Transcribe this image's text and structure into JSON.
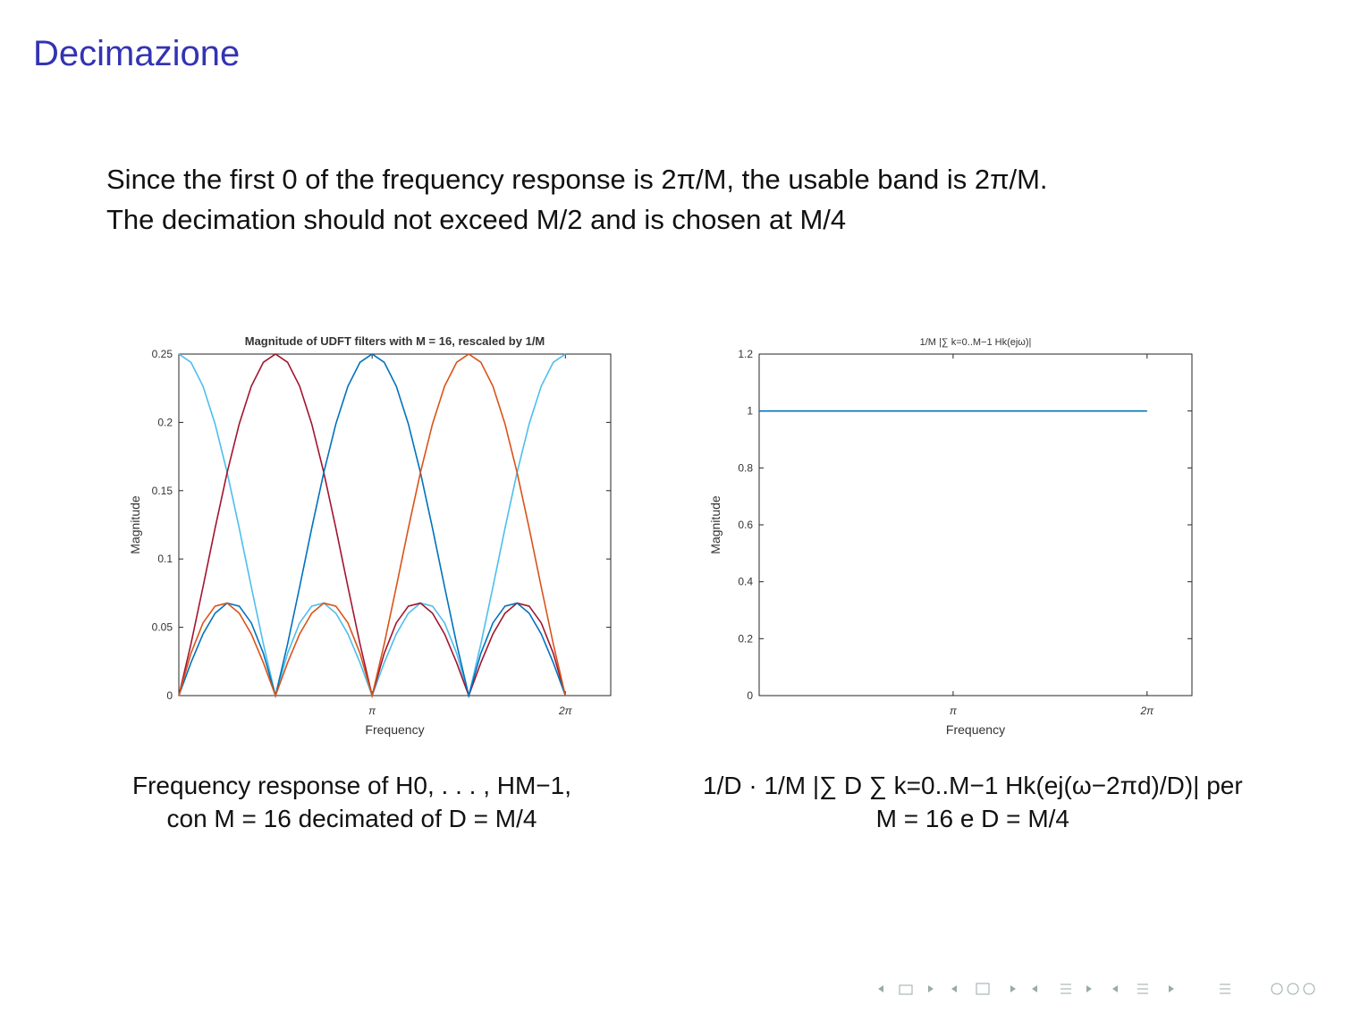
{
  "header": {
    "title": "Decimazione"
  },
  "body": {
    "lines": [
      "Since the first 0 of the frequency response is 2π/M, the usable band is 2π/M.",
      "The decimation should not exceed M/2 and is chosen at M/4"
    ]
  },
  "captions": [
    {
      "lines": [
        "Frequency response of H0, . . . , HM−1,",
        "con M = 16 decimated of D = M/4"
      ]
    },
    {
      "lines": [
        "1/D · 1/M |∑ D ∑ k=0..M−1 Hk(ej(ω−2πd)/D)| per",
        "M = 16 e D = M/4"
      ]
    }
  ],
  "chart_data": [
    {
      "type": "line",
      "title": "Magnitude of UDFT filters with M = 16, rescaled by 1/M",
      "x_label": "Frequency",
      "y_label": "Magnitude",
      "x": [
        0,
        0.19635,
        0.3927,
        0.58905,
        0.7854,
        0.98175,
        1.1781,
        1.37445,
        1.5708,
        1.76715,
        1.9635,
        2.15985,
        2.3562,
        2.55254,
        2.74889,
        2.94524,
        3.14159,
        3.33794,
        3.53429,
        3.73064,
        3.92699,
        4.12334,
        4.31969,
        4.51604,
        4.71239,
        4.90874,
        5.10509,
        5.30144,
        5.49779,
        5.69414,
        5.89049,
        6.08684,
        6.28319
      ],
      "series": [
        {
          "color": "#4dbeee",
          "values": [
            0.25,
            0.244,
            0.2265,
            0.1989,
            0.1633,
            0.1225,
            0.0795,
            0.0377,
            0,
            0.0309,
            0.0532,
            0.0655,
            0.0677,
            0.0603,
            0.0451,
            0.024,
            0,
            0.024,
            0.0451,
            0.0603,
            0.0677,
            0.0655,
            0.0532,
            0.0309,
            0,
            0.0377,
            0.0795,
            0.1225,
            0.1633,
            0.1989,
            0.2265,
            0.244,
            0.25
          ]
        },
        {
          "color": "#a2142f",
          "values": [
            0,
            0.0377,
            0.0795,
            0.1225,
            0.1633,
            0.1989,
            0.2265,
            0.244,
            0.25,
            0.244,
            0.2265,
            0.1989,
            0.1633,
            0.1225,
            0.0795,
            0.0377,
            0,
            0.0309,
            0.0532,
            0.0655,
            0.0677,
            0.0603,
            0.0451,
            0.024,
            0,
            0.024,
            0.0451,
            0.0603,
            0.0677,
            0.0655,
            0.0532,
            0.0309,
            0
          ]
        },
        {
          "color": "#0072bd",
          "values": [
            0,
            0.024,
            0.0451,
            0.0603,
            0.0677,
            0.0655,
            0.0532,
            0.0309,
            0,
            0.0377,
            0.0795,
            0.1225,
            0.1633,
            0.1989,
            0.2265,
            0.244,
            0.25,
            0.244,
            0.2265,
            0.1989,
            0.1633,
            0.1225,
            0.0795,
            0.0377,
            0,
            0.0309,
            0.0532,
            0.0655,
            0.0677,
            0.0603,
            0.0451,
            0.024,
            0
          ]
        },
        {
          "color": "#d95319",
          "values": [
            0,
            0.0309,
            0.0532,
            0.0655,
            0.0677,
            0.0603,
            0.0451,
            0.024,
            0,
            0.024,
            0.0451,
            0.0603,
            0.0677,
            0.0655,
            0.0532,
            0.0309,
            0,
            0.0377,
            0.0795,
            0.1225,
            0.1633,
            0.1989,
            0.2265,
            0.244,
            0.25,
            0.244,
            0.2265,
            0.1989,
            0.1633,
            0.1225,
            0.0795,
            0.0377,
            0
          ]
        }
      ],
      "xlim": [
        0,
        7.02
      ],
      "ylim": [
        0,
        0.25
      ],
      "xticks": [
        {
          "value": 3.14159,
          "label": "π"
        },
        {
          "value": 6.28319,
          "label": "2π"
        }
      ],
      "yticks": [
        0,
        0.05,
        0.1,
        0.15,
        0.2,
        0.25
      ],
      "grid": false
    },
    {
      "type": "line",
      "title": "1/M |∑ k=0..M−1 Hk(ejω)|",
      "x_label": "Frequency",
      "y_label": "Magnitude",
      "x": [
        0,
        6.28319
      ],
      "series": [
        {
          "color": "#0072bd",
          "values": [
            1,
            1
          ]
        }
      ],
      "xlim": [
        0,
        7.01
      ],
      "ylim": [
        0,
        1.2
      ],
      "xticks": [
        {
          "value": 3.14159,
          "label": "π"
        },
        {
          "value": 6.28319,
          "label": "2π"
        }
      ],
      "yticks": [
        0,
        0.2,
        0.4,
        0.6,
        0.8,
        1,
        1.2
      ],
      "grid": false
    }
  ]
}
